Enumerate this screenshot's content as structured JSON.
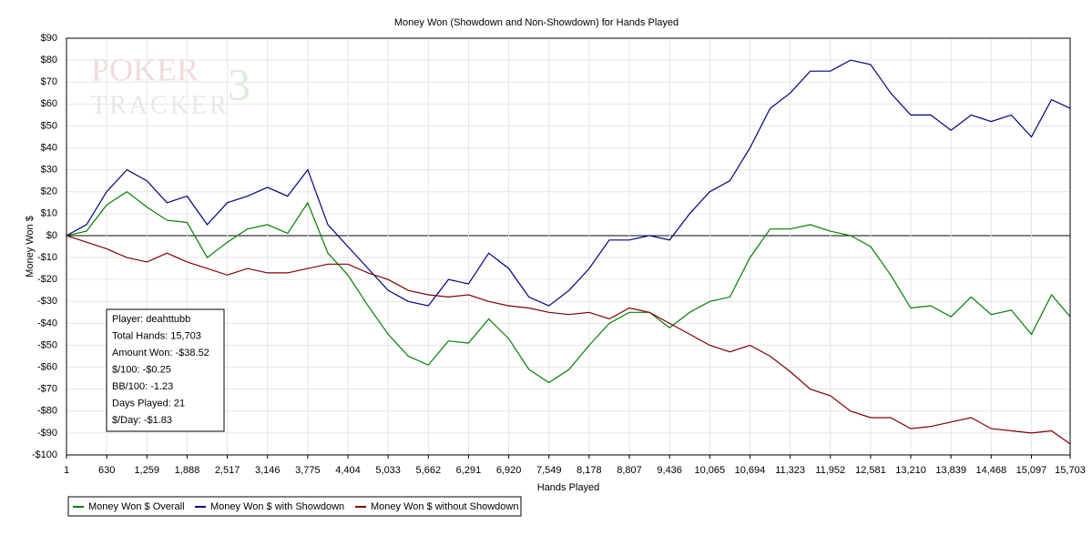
{
  "chart_data": {
    "type": "line",
    "title": "Money Won (Showdown and Non-Showdown) for Hands Played",
    "xlabel": "Hands Played",
    "ylabel": "Money Won $",
    "watermark": [
      "POKER",
      "TRACKER",
      "3"
    ],
    "annotations": [
      "Player: deahttubb",
      "Total Hands: 15,703",
      "Amount Won: -$38.52",
      "$/100: -$0.25",
      "BB/100: -1.23",
      "Days Played: 21",
      "$/Day: -$1.83"
    ],
    "xlim": [
      1,
      15703
    ],
    "ylim": [
      -100,
      90
    ],
    "grid": true,
    "xticks": [
      1,
      630,
      {
        "value": 1259,
        "label": "1,259"
      },
      {
        "value": 1888,
        "label": "1,888"
      },
      {
        "value": 2517,
        "label": "2,517"
      },
      {
        "value": 3146,
        "label": "3,146"
      },
      {
        "value": 3775,
        "label": "3,775"
      },
      {
        "value": 4404,
        "label": "4,404"
      },
      {
        "value": 5033,
        "label": "5,033"
      },
      {
        "value": 5662,
        "label": "5,662"
      },
      {
        "value": 6291,
        "label": "6,291"
      },
      {
        "value": 6920,
        "label": "6,920"
      },
      {
        "value": 7549,
        "label": "7,549"
      },
      {
        "value": 8178,
        "label": "8,178"
      },
      {
        "value": 8807,
        "label": "8,807"
      },
      {
        "value": 9436,
        "label": "9,436"
      },
      {
        "value": 10065,
        "label": "10,065"
      },
      {
        "value": 10694,
        "label": "10,694"
      },
      {
        "value": 11323,
        "label": "11,323"
      },
      {
        "value": 11952,
        "label": "11,952"
      },
      {
        "value": 12581,
        "label": "12,581"
      },
      {
        "value": 13210,
        "label": "13,210"
      },
      {
        "value": 13839,
        "label": "13,839"
      },
      {
        "value": 14468,
        "label": "14,468"
      },
      {
        "value": 15097,
        "label": "15,097"
      },
      {
        "value": 15703,
        "label": "15,703"
      }
    ],
    "yticks": [
      {
        "value": 90,
        "label": "$90"
      },
      {
        "value": 80,
        "label": "$80"
      },
      {
        "value": 70,
        "label": "$70"
      },
      {
        "value": 60,
        "label": "$60"
      },
      {
        "value": 50,
        "label": "$50"
      },
      {
        "value": 40,
        "label": "$40"
      },
      {
        "value": 30,
        "label": "$30"
      },
      {
        "value": 20,
        "label": "$20"
      },
      {
        "value": 10,
        "label": "$10"
      },
      {
        "value": 0,
        "label": "$0"
      },
      {
        "value": -10,
        "label": "-$10"
      },
      {
        "value": -20,
        "label": "-$20"
      },
      {
        "value": -30,
        "label": "-$30"
      },
      {
        "value": -40,
        "label": "-$40"
      },
      {
        "value": -50,
        "label": "-$50"
      },
      {
        "value": -60,
        "label": "-$60"
      },
      {
        "value": -70,
        "label": "-$70"
      },
      {
        "value": -80,
        "label": "-$80"
      },
      {
        "value": -90,
        "label": "-$90"
      },
      {
        "value": -100,
        "label": "-$100"
      }
    ],
    "x": [
      1,
      315,
      630,
      945,
      1259,
      1574,
      1888,
      2203,
      2517,
      2832,
      3146,
      3461,
      3775,
      4090,
      4404,
      4719,
      5033,
      5348,
      5662,
      5977,
      6291,
      6606,
      6920,
      7235,
      7549,
      7864,
      8178,
      8493,
      8807,
      9122,
      9436,
      9751,
      10065,
      10380,
      10694,
      11009,
      11323,
      11638,
      11952,
      12267,
      12581,
      12896,
      13210,
      13525,
      13839,
      14154,
      14468,
      14783,
      15097,
      15412,
      15703
    ],
    "series": [
      {
        "name": "Money Won $ Overall",
        "color": "#008000",
        "values": [
          0,
          2,
          14,
          20,
          13,
          7,
          6,
          -10,
          -3,
          3,
          5,
          1,
          15,
          -8,
          -18,
          -32,
          -45,
          -55,
          -59,
          -48,
          -49,
          -38,
          -47,
          -61,
          -67,
          -61,
          -50,
          -40,
          -35,
          -35,
          -42,
          -35,
          -30,
          -28,
          -10,
          3,
          3,
          5,
          2,
          0,
          -5,
          -18,
          -33,
          -32,
          -37,
          -28,
          -36,
          -34,
          -45,
          -27,
          -37
        ]
      },
      {
        "name": "Money Won $ with Showdown",
        "color": "#000080",
        "values": [
          0,
          5,
          20,
          30,
          25,
          15,
          18,
          5,
          15,
          18,
          22,
          18,
          30,
          5,
          -5,
          -15,
          -25,
          -30,
          -32,
          -20,
          -22,
          -8,
          -15,
          -28,
          -32,
          -25,
          -15,
          -2,
          -2,
          0,
          -2,
          10,
          20,
          25,
          40,
          58,
          65,
          75,
          75,
          80,
          78,
          65,
          55,
          55,
          48,
          55,
          52,
          55,
          45,
          62,
          58
        ]
      },
      {
        "name": "Money Won $ without Showdown",
        "color": "#800000",
        "values": [
          0,
          -3,
          -6,
          -10,
          -12,
          -8,
          -12,
          -15,
          -18,
          -15,
          -17,
          -17,
          -15,
          -13,
          -13,
          -17,
          -20,
          -25,
          -27,
          -28,
          -27,
          -30,
          -32,
          -33,
          -35,
          -36,
          -35,
          -38,
          -33,
          -35,
          -40,
          -45,
          -50,
          -53,
          -50,
          -55,
          -62,
          -70,
          -73,
          -80,
          -83,
          -83,
          -88,
          -87,
          -85,
          -83,
          -88,
          -89,
          -90,
          -89,
          -95
        ]
      }
    ]
  }
}
